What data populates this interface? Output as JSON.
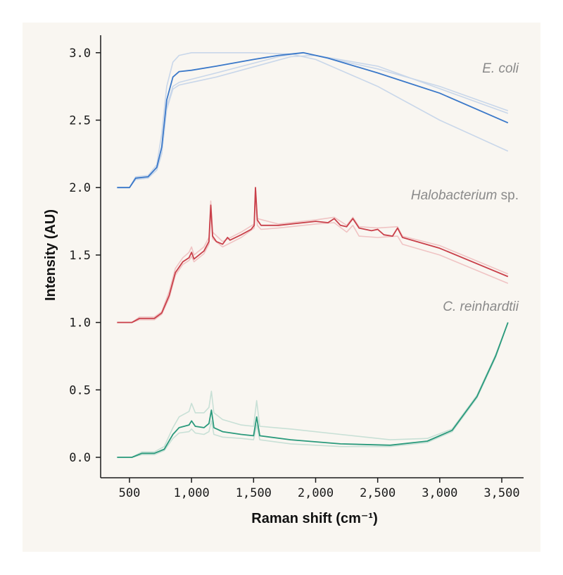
{
  "chart_data": {
    "type": "line",
    "xlabel": "Raman shift (cm⁻¹)",
    "ylabel": "Intensity (AU)",
    "xlim": [
      300,
      3650
    ],
    "ylim": [
      -0.15,
      3.15
    ],
    "xticks": [
      500,
      1000,
      1500,
      2000,
      2500,
      3000,
      3500
    ],
    "xtick_labels": [
      "500",
      "1,000",
      "1,500",
      "2,000",
      "2,500",
      "3,000",
      "3,500"
    ],
    "yticks": [
      0,
      0.5,
      1,
      1.5,
      2,
      2.5,
      3
    ],
    "ytick_labels": [
      "0.0",
      "0.5",
      "1.0",
      "1.5",
      "2.0",
      "2.5",
      "3.0"
    ],
    "grid": false,
    "groups": [
      {
        "label_italic": "E. coli",
        "label_rest": "",
        "color": "#3a78c9",
        "replicate_color": "#c9d7ea",
        "mean": [
          [
            400,
            2.0
          ],
          [
            500,
            2.0
          ],
          [
            550,
            2.07
          ],
          [
            650,
            2.08
          ],
          [
            720,
            2.15
          ],
          [
            760,
            2.3
          ],
          [
            800,
            2.65
          ],
          [
            850,
            2.82
          ],
          [
            900,
            2.86
          ],
          [
            1000,
            2.87
          ],
          [
            1200,
            2.9
          ],
          [
            1500,
            2.95
          ],
          [
            1700,
            2.98
          ],
          [
            1900,
            3.0
          ],
          [
            2100,
            2.96
          ],
          [
            2500,
            2.85
          ],
          [
            3000,
            2.7
          ],
          [
            3550,
            2.48
          ]
        ],
        "replicates": [
          [
            [
              400,
              2.0
            ],
            [
              500,
              2.0
            ],
            [
              550,
              2.08
            ],
            [
              650,
              2.09
            ],
            [
              720,
              2.17
            ],
            [
              760,
              2.4
            ],
            [
              800,
              2.75
            ],
            [
              850,
              2.93
            ],
            [
              900,
              2.98
            ],
            [
              1000,
              3.0
            ],
            [
              1500,
              3.0
            ],
            [
              1800,
              2.99
            ],
            [
              2000,
              2.95
            ],
            [
              2500,
              2.75
            ],
            [
              3000,
              2.5
            ],
            [
              3550,
              2.27
            ]
          ],
          [
            [
              400,
              2.0
            ],
            [
              500,
              2.0
            ],
            [
              550,
              2.06
            ],
            [
              650,
              2.07
            ],
            [
              720,
              2.13
            ],
            [
              760,
              2.25
            ],
            [
              800,
              2.6
            ],
            [
              850,
              2.75
            ],
            [
              900,
              2.78
            ],
            [
              1200,
              2.85
            ],
            [
              1700,
              2.97
            ],
            [
              1900,
              3.0
            ],
            [
              2500,
              2.88
            ],
            [
              3000,
              2.75
            ],
            [
              3550,
              2.57
            ]
          ],
          [
            [
              400,
              2.0
            ],
            [
              500,
              2.0
            ],
            [
              550,
              2.06
            ],
            [
              650,
              2.07
            ],
            [
              720,
              2.13
            ],
            [
              760,
              2.25
            ],
            [
              800,
              2.58
            ],
            [
              850,
              2.73
            ],
            [
              900,
              2.76
            ],
            [
              1200,
              2.82
            ],
            [
              1800,
              2.97
            ],
            [
              2000,
              2.98
            ],
            [
              2500,
              2.9
            ],
            [
              3550,
              2.55
            ]
          ]
        ]
      },
      {
        "label_italic": "Halobacterium",
        "label_rest": " sp.",
        "color": "#c9404a",
        "replicate_color": "#f0c4c4",
        "mean": [
          [
            400,
            1.0
          ],
          [
            520,
            1.0
          ],
          [
            580,
            1.03
          ],
          [
            700,
            1.03
          ],
          [
            760,
            1.07
          ],
          [
            820,
            1.2
          ],
          [
            870,
            1.37
          ],
          [
            930,
            1.45
          ],
          [
            980,
            1.48
          ],
          [
            1000,
            1.52
          ],
          [
            1020,
            1.47
          ],
          [
            1100,
            1.53
          ],
          [
            1140,
            1.6
          ],
          [
            1155,
            1.87
          ],
          [
            1170,
            1.64
          ],
          [
            1200,
            1.6
          ],
          [
            1250,
            1.58
          ],
          [
            1290,
            1.63
          ],
          [
            1310,
            1.61
          ],
          [
            1400,
            1.65
          ],
          [
            1480,
            1.69
          ],
          [
            1505,
            1.72
          ],
          [
            1515,
            2.0
          ],
          [
            1530,
            1.76
          ],
          [
            1560,
            1.72
          ],
          [
            1700,
            1.72
          ],
          [
            2000,
            1.75
          ],
          [
            2100,
            1.74
          ],
          [
            2150,
            1.77
          ],
          [
            2200,
            1.72
          ],
          [
            2250,
            1.71
          ],
          [
            2300,
            1.77
          ],
          [
            2350,
            1.7
          ],
          [
            2450,
            1.68
          ],
          [
            2500,
            1.69
          ],
          [
            2550,
            1.65
          ],
          [
            2620,
            1.64
          ],
          [
            2660,
            1.7
          ],
          [
            2700,
            1.63
          ],
          [
            3000,
            1.55
          ],
          [
            3550,
            1.34
          ]
        ],
        "replicates": [
          [
            [
              400,
              1.0
            ],
            [
              520,
              1.0
            ],
            [
              580,
              1.04
            ],
            [
              700,
              1.04
            ],
            [
              760,
              1.08
            ],
            [
              820,
              1.23
            ],
            [
              870,
              1.4
            ],
            [
              930,
              1.48
            ],
            [
              980,
              1.52
            ],
            [
              1000,
              1.56
            ],
            [
              1020,
              1.5
            ],
            [
              1100,
              1.56
            ],
            [
              1140,
              1.63
            ],
            [
              1155,
              1.9
            ],
            [
              1170,
              1.67
            ],
            [
              1250,
              1.6
            ],
            [
              1400,
              1.67
            ],
            [
              1505,
              1.73
            ],
            [
              1515,
              2.0
            ],
            [
              1530,
              1.77
            ],
            [
              1700,
              1.73
            ],
            [
              2000,
              1.76
            ],
            [
              2150,
              1.78
            ],
            [
              2250,
              1.72
            ],
            [
              2300,
              1.78
            ],
            [
              2350,
              1.71
            ],
            [
              2500,
              1.7
            ],
            [
              2660,
              1.71
            ],
            [
              2700,
              1.64
            ],
            [
              3000,
              1.57
            ],
            [
              3550,
              1.36
            ]
          ],
          [
            [
              400,
              1.0
            ],
            [
              520,
              1.0
            ],
            [
              580,
              1.02
            ],
            [
              700,
              1.02
            ],
            [
              760,
              1.06
            ],
            [
              820,
              1.18
            ],
            [
              870,
              1.35
            ],
            [
              930,
              1.43
            ],
            [
              980,
              1.46
            ],
            [
              1000,
              1.49
            ],
            [
              1020,
              1.45
            ],
            [
              1100,
              1.51
            ],
            [
              1140,
              1.58
            ],
            [
              1155,
              1.84
            ],
            [
              1170,
              1.62
            ],
            [
              1250,
              1.56
            ],
            [
              1400,
              1.63
            ],
            [
              1505,
              1.7
            ],
            [
              1515,
              1.97
            ],
            [
              1530,
              1.72
            ],
            [
              1560,
              1.69
            ],
            [
              1700,
              1.7
            ],
            [
              2000,
              1.73
            ],
            [
              2150,
              1.74
            ],
            [
              2250,
              1.67
            ],
            [
              2300,
              1.72
            ],
            [
              2350,
              1.64
            ],
            [
              2500,
              1.63
            ],
            [
              2660,
              1.64
            ],
            [
              2700,
              1.58
            ],
            [
              3000,
              1.5
            ],
            [
              3550,
              1.29
            ]
          ]
        ]
      },
      {
        "label_italic": "C. reinhardtii",
        "label_rest": "",
        "color": "#2a9a7c",
        "replicate_color": "#c8e0d6",
        "mean": [
          [
            400,
            0.0
          ],
          [
            520,
            0.0
          ],
          [
            600,
            0.03
          ],
          [
            700,
            0.03
          ],
          [
            780,
            0.06
          ],
          [
            850,
            0.17
          ],
          [
            900,
            0.22
          ],
          [
            980,
            0.24
          ],
          [
            1000,
            0.27
          ],
          [
            1030,
            0.23
          ],
          [
            1100,
            0.22
          ],
          [
            1140,
            0.25
          ],
          [
            1160,
            0.35
          ],
          [
            1180,
            0.22
          ],
          [
            1250,
            0.19
          ],
          [
            1400,
            0.17
          ],
          [
            1500,
            0.16
          ],
          [
            1525,
            0.3
          ],
          [
            1550,
            0.16
          ],
          [
            1800,
            0.13
          ],
          [
            2200,
            0.1
          ],
          [
            2600,
            0.09
          ],
          [
            2900,
            0.12
          ],
          [
            3100,
            0.2
          ],
          [
            3300,
            0.45
          ],
          [
            3450,
            0.75
          ],
          [
            3550,
            1.0
          ]
        ],
        "replicates": [
          [
            [
              400,
              0.0
            ],
            [
              520,
              0.0
            ],
            [
              600,
              0.04
            ],
            [
              700,
              0.04
            ],
            [
              780,
              0.08
            ],
            [
              850,
              0.22
            ],
            [
              900,
              0.3
            ],
            [
              980,
              0.34
            ],
            [
              1000,
              0.4
            ],
            [
              1030,
              0.33
            ],
            [
              1100,
              0.33
            ],
            [
              1140,
              0.37
            ],
            [
              1160,
              0.49
            ],
            [
              1180,
              0.33
            ],
            [
              1250,
              0.28
            ],
            [
              1400,
              0.24
            ],
            [
              1500,
              0.23
            ],
            [
              1525,
              0.42
            ],
            [
              1550,
              0.23
            ],
            [
              1800,
              0.21
            ],
            [
              2200,
              0.17
            ],
            [
              2600,
              0.13
            ],
            [
              2900,
              0.14
            ],
            [
              3100,
              0.21
            ],
            [
              3300,
              0.46
            ],
            [
              3450,
              0.76
            ],
            [
              3550,
              1.0
            ]
          ],
          [
            [
              400,
              0.0
            ],
            [
              520,
              0.0
            ],
            [
              600,
              0.02
            ],
            [
              700,
              0.02
            ],
            [
              780,
              0.05
            ],
            [
              850,
              0.14
            ],
            [
              900,
              0.18
            ],
            [
              980,
              0.19
            ],
            [
              1000,
              0.21
            ],
            [
              1030,
              0.18
            ],
            [
              1100,
              0.17
            ],
            [
              1140,
              0.19
            ],
            [
              1160,
              0.27
            ],
            [
              1180,
              0.17
            ],
            [
              1250,
              0.15
            ],
            [
              1400,
              0.14
            ],
            [
              1500,
              0.13
            ],
            [
              1525,
              0.24
            ],
            [
              1550,
              0.13
            ],
            [
              1800,
              0.1
            ],
            [
              2200,
              0.08
            ],
            [
              2600,
              0.08
            ],
            [
              2900,
              0.11
            ],
            [
              3100,
              0.19
            ],
            [
              3300,
              0.44
            ],
            [
              3450,
              0.74
            ],
            [
              3550,
              1.0
            ]
          ]
        ]
      }
    ]
  }
}
